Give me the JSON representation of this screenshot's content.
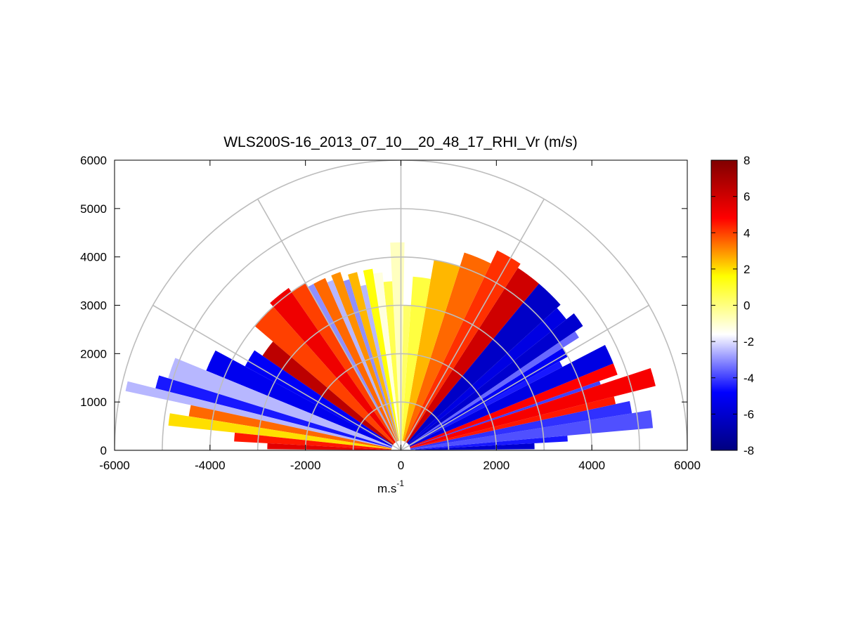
{
  "chart_data": {
    "type": "heatmap",
    "subtype": "polar-rhi-sector",
    "title": "WLS200S-16_2013_07_10__20_48_17_RHI_Vr (m/s)",
    "xlabel": "m.s",
    "xlabel_superscript": "-1",
    "ylabel": "",
    "xlim": [
      -6000,
      6000
    ],
    "ylim": [
      0,
      6000
    ],
    "x_ticks": [
      -6000,
      -4000,
      -2000,
      0,
      2000,
      4000,
      6000
    ],
    "y_ticks": [
      0,
      1000,
      2000,
      3000,
      4000,
      5000,
      6000
    ],
    "x_tick_labels": [
      "-6000",
      "-4000",
      "-2000",
      "0",
      "2000",
      "4000",
      "6000"
    ],
    "y_tick_labels": [
      "0",
      "1000",
      "2000",
      "3000",
      "4000",
      "5000",
      "6000"
    ],
    "polar_grid": {
      "range_rings": [
        1000,
        2000,
        3000,
        4000,
        5000,
        6000
      ],
      "spoke_angles_deg": [
        0,
        30,
        60,
        90,
        120,
        150,
        180
      ]
    },
    "colorbar": {
      "min": -8,
      "max": 8,
      "ticks": [
        -8,
        -6,
        -4,
        -2,
        0,
        2,
        4,
        6,
        8
      ],
      "tick_labels": [
        "-8",
        "-6",
        "-4",
        "-2",
        "0",
        "2",
        "4",
        "6",
        "8"
      ],
      "colormap": [
        "#000080",
        "#0000ff",
        "#ffffff",
        "#ffff00",
        "#ff0000",
        "#800000"
      ]
    },
    "sectors": [
      {
        "az": [
          0.5,
          3
        ],
        "r": [
          300,
          2800
        ],
        "v": -6.0
      },
      {
        "az": [
          3,
          5
        ],
        "r": [
          200,
          3500
        ],
        "v": -4.5
      },
      {
        "az": [
          5,
          9
        ],
        "r": [
          200,
          5300
        ],
        "v": -3.8
      },
      {
        "az": [
          9,
          12
        ],
        "r": [
          200,
          4900
        ],
        "v": -4.2
      },
      {
        "az": [
          12,
          14
        ],
        "r": [
          200,
          4600
        ],
        "v": 4.5
      },
      {
        "az": [
          14,
          18
        ],
        "r": [
          200,
          5500
        ],
        "v": 5.0
      },
      {
        "az": [
          18,
          19
        ],
        "r": [
          200,
          4400
        ],
        "v": -4.0
      },
      {
        "az": [
          19,
          22
        ],
        "r": [
          200,
          4800
        ],
        "v": 4.8
      },
      {
        "az": [
          22,
          27
        ],
        "r": [
          200,
          4800
        ],
        "v": -5.5
      },
      {
        "az": [
          27,
          29
        ],
        "r": [
          200,
          3800
        ],
        "v": -4.5
      },
      {
        "az": [
          29,
          32
        ],
        "r": [
          200,
          4000
        ],
        "v": -5.0
      },
      {
        "az": [
          32,
          34
        ],
        "r": [
          200,
          4400
        ],
        "v": -3.5
      },
      {
        "az": [
          34,
          38
        ],
        "r": [
          200,
          4600
        ],
        "v": -6.0
      },
      {
        "az": [
          38,
          42
        ],
        "r": [
          200,
          4400
        ],
        "v": -5.5
      },
      {
        "az": [
          42,
          50
        ],
        "r": [
          200,
          4500
        ],
        "v": -6.2
      },
      {
        "az": [
          50,
          57
        ],
        "r": [
          200,
          4500
        ],
        "v": 6.0
      },
      {
        "az": [
          57,
          64
        ],
        "r": [
          200,
          4600
        ],
        "v": 4.2
      },
      {
        "az": [
          64,
          72
        ],
        "r": [
          200,
          4300
        ],
        "v": 3.5
      },
      {
        "az": [
          72,
          80
        ],
        "r": [
          200,
          4000
        ],
        "v": 2.5
      },
      {
        "az": [
          80,
          86
        ],
        "r": [
          200,
          3600
        ],
        "v": 0.8
      },
      {
        "az": [
          86,
          89
        ],
        "r": [
          200,
          3000
        ],
        "v": 0.3
      },
      {
        "az": [
          89,
          93
        ],
        "r": [
          200,
          4300
        ],
        "v": -0.8
      },
      {
        "az": [
          93,
          96
        ],
        "r": [
          200,
          3500
        ],
        "v": 0.6
      },
      {
        "az": [
          96,
          99
        ],
        "r": [
          200,
          3700
        ],
        "v": -1.2
      },
      {
        "az": [
          99,
          102
        ],
        "r": [
          200,
          3800
        ],
        "v": 1.5
      },
      {
        "az": [
          102,
          104
        ],
        "r": [
          200,
          3500
        ],
        "v": -2.5
      },
      {
        "az": [
          104,
          107
        ],
        "r": [
          200,
          3800
        ],
        "v": 2.5
      },
      {
        "az": [
          107,
          109
        ],
        "r": [
          200,
          3700
        ],
        "v": -3.0
      },
      {
        "az": [
          109,
          112
        ],
        "r": [
          200,
          3900
        ],
        "v": 3.0
      },
      {
        "az": [
          112,
          114
        ],
        "r": [
          200,
          3800
        ],
        "v": -2.5
      },
      {
        "az": [
          114,
          118
        ],
        "r": [
          200,
          3900
        ],
        "v": 3.5
      },
      {
        "az": [
          118,
          120
        ],
        "r": [
          200,
          3900
        ],
        "v": -3.0
      },
      {
        "az": [
          120,
          125
        ],
        "r": [
          200,
          4000
        ],
        "v": 4.0
      },
      {
        "az": [
          125,
          132
        ],
        "r": [
          200,
          4100
        ],
        "v": 5.2
      },
      {
        "az": [
          132,
          140
        ],
        "r": [
          200,
          4000
        ],
        "v": 4.0
      },
      {
        "az": [
          140,
          146
        ],
        "r": [
          200,
          3500
        ],
        "v": 6.5
      },
      {
        "az": [
          146,
          152
        ],
        "r": [
          200,
          3700
        ],
        "v": -5.0
      },
      {
        "az": [
          152,
          158
        ],
        "r": [
          200,
          4400
        ],
        "v": -5.2
      },
      {
        "az": [
          158,
          163
        ],
        "r": [
          200,
          5100
        ],
        "v": -2.5
      },
      {
        "az": [
          163,
          166
        ],
        "r": [
          200,
          5300
        ],
        "v": -4.5
      },
      {
        "az": [
          166,
          168
        ],
        "r": [
          200,
          5900
        ],
        "v": -2.5
      },
      {
        "az": [
          168,
          171
        ],
        "r": [
          200,
          4500
        ],
        "v": 3.5
      },
      {
        "az": [
          171,
          174
        ],
        "r": [
          200,
          4900
        ],
        "v": 2.0
      },
      {
        "az": [
          174,
          177
        ],
        "r": [
          200,
          3500
        ],
        "v": 4.5
      },
      {
        "az": [
          177,
          179.5
        ],
        "r": [
          200,
          2800
        ],
        "v": 5.5
      }
    ]
  }
}
